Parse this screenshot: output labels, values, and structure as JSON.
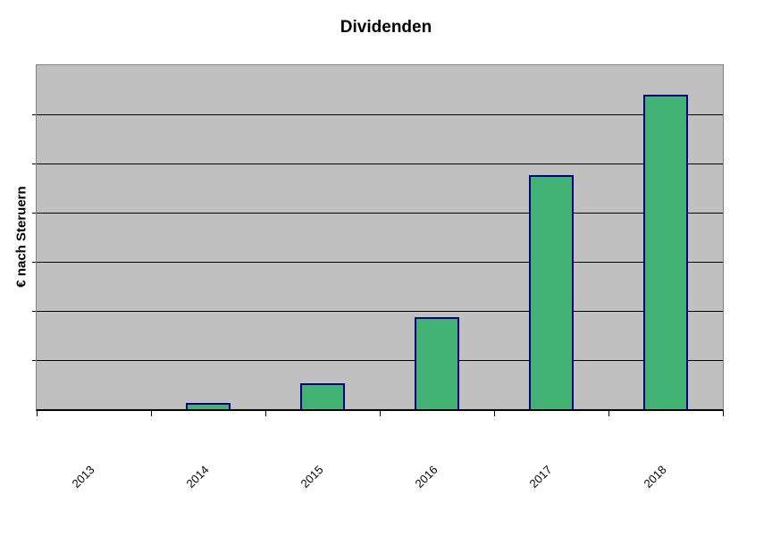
{
  "chart_data": {
    "type": "bar",
    "title": "Dividenden",
    "xlabel": "",
    "ylabel": "€ nach Steruern",
    "categories": [
      "2013",
      "2014",
      "2015",
      "2016",
      "2017",
      "2018"
    ],
    "values": [
      0,
      0.13,
      0.53,
      1.87,
      4.77,
      6.4
    ],
    "values_note": "no y-axis tick labels visible; values estimated in gridline units",
    "ylim": [
      0,
      7
    ],
    "gridline_interval": 1,
    "gridline_count": 6,
    "grid": "horizontal",
    "legend": "none",
    "y_tick_labels_visible": false,
    "x_label_rotation_deg": -45,
    "colors": {
      "bar_fill": "#42B375",
      "bar_border": "#000080",
      "plot_background": "#C0C0C0",
      "plot_border": "#808080",
      "gridline": "#000000",
      "axis": "#000000",
      "tick": "#000000",
      "page_background": "#FFFFFF",
      "text": "#000000"
    }
  }
}
